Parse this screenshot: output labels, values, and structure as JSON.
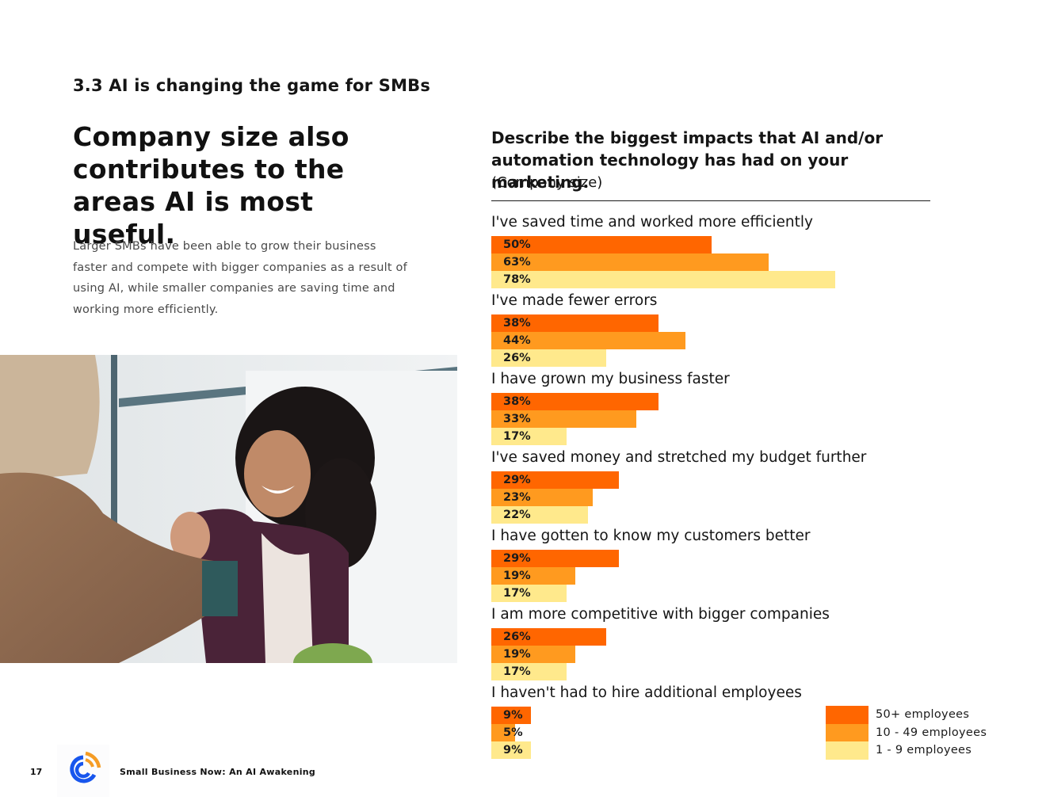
{
  "page": {
    "section_title": "3.3 AI is changing the game for SMBs",
    "headline": "Company size also contributes to the areas AI is most useful.",
    "body": "Larger SMBs have been able to grow their business faster and compete with bigger companies as a result of using AI, while smaller companies are saving time and working more efficiently.",
    "photo_alt": "photo-two-women-shaking-hands"
  },
  "footer": {
    "page_number": "17",
    "logo": "constant-contact-logo-icon",
    "report_title": "Small Business Now: An AI Awakening"
  },
  "colors": {
    "series_50_plus": "#FF6600",
    "series_10_49": "#FF9A1F",
    "series_1_9": "#FFE98C",
    "text": "#151515"
  },
  "chart_data": {
    "type": "bar",
    "orientation": "horizontal",
    "title": "Describe the biggest impacts that AI and/or automation technology has had on your marketing.",
    "subtitle": "(Company size)",
    "xlabel": "",
    "ylabel": "",
    "xlim": [
      0,
      100
    ],
    "unit": "%",
    "grid": false,
    "legend_position": "bottom-right",
    "categories": [
      "I've saved time and worked more efficiently",
      "I've made fewer errors",
      "I have grown my business faster",
      "I've saved money and stretched my budget further",
      "I have gotten to know my customers better",
      "I am more competitive with bigger companies",
      "I haven't had to hire additional employees"
    ],
    "series": [
      {
        "name": "50+ employees",
        "color": "#FF6600",
        "values": [
          50,
          38,
          38,
          29,
          29,
          26,
          9
        ]
      },
      {
        "name": "10 - 49 employees",
        "color": "#FF9A1F",
        "values": [
          63,
          44,
          33,
          23,
          19,
          19,
          5
        ]
      },
      {
        "name": "1 - 9 employees",
        "color": "#FFE98C",
        "values": [
          78,
          26,
          17,
          22,
          17,
          17,
          9
        ]
      }
    ]
  }
}
